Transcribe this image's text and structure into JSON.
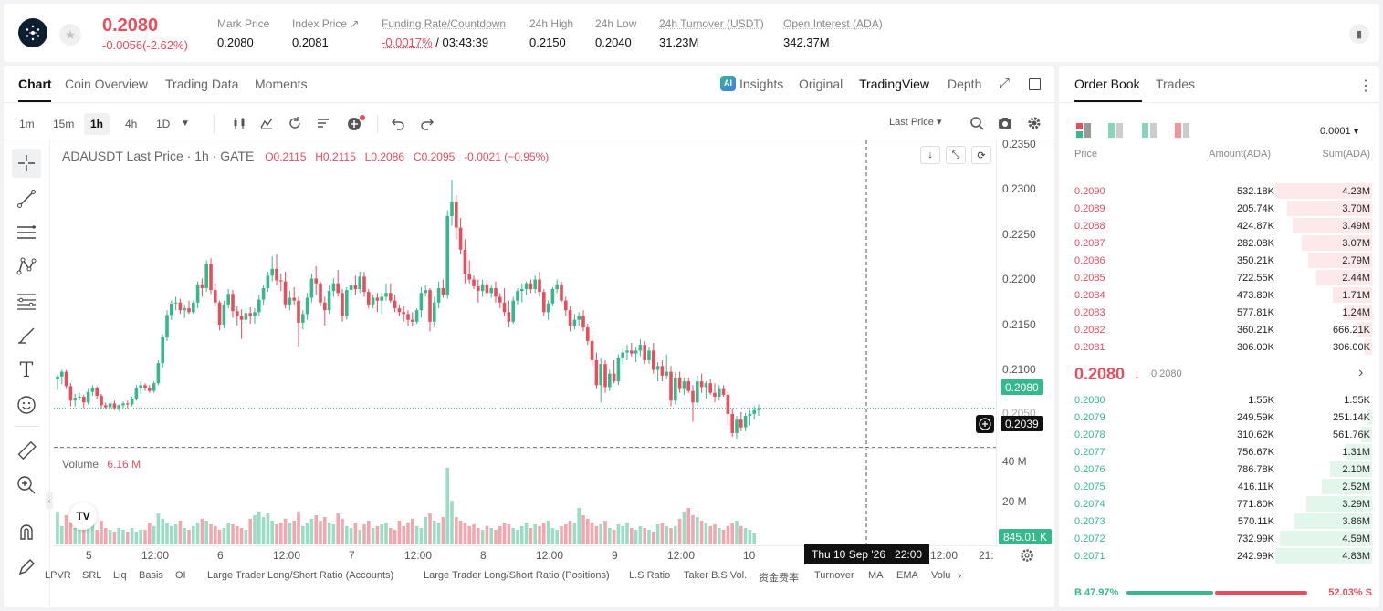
{
  "header": {
    "price": "0.2080",
    "change": "-0.0056(-2.62%)",
    "stats": [
      {
        "label": "Mark Price",
        "value": "0.2080"
      },
      {
        "label": "Index Price ↗",
        "value": "0.2081"
      },
      {
        "label": "Funding Rate/Countdown",
        "value_red": "-0.0017%",
        "value": " / 03:43:39"
      },
      {
        "label": "24h High",
        "value": "0.2150"
      },
      {
        "label": "24h Low",
        "value": "0.2040"
      },
      {
        "label": "24h Turnover (USDT)",
        "value": "31.23M"
      },
      {
        "label": "Open Interest (ADA)",
        "value": "342.37M"
      }
    ]
  },
  "chart_tabs": [
    "Chart",
    "Coin Overview",
    "Trading Data",
    "Moments"
  ],
  "view_tabs": {
    "insights": "Insights",
    "original": "Original",
    "tradingview": "TradingView",
    "depth": "Depth"
  },
  "timeframes": [
    "1m",
    "15m",
    "1h",
    "4h",
    "1D"
  ],
  "price_type": "Last Price ▾",
  "legend": {
    "symbol": "ADAUSDT Last Price · 1h · GATE",
    "o": "O0.2115",
    "h": "H0.2115",
    "l": "L0.2086",
    "c": "C0.2095",
    "chg": "-0.0021 (−0.95%)"
  },
  "volume": {
    "label": "Volume",
    "value": "6.16 M"
  },
  "chart_data": {
    "type": "candlestick",
    "symbol": "ADAUSDT",
    "interval": "1h",
    "y_ticks": [
      "0.2350",
      "0.2300",
      "0.2250",
      "0.2200",
      "0.2150",
      "0.2100",
      "0.2050"
    ],
    "volume_ticks": [
      "40 M",
      "20 M"
    ],
    "x_ticks": [
      "5",
      "12:00",
      "6",
      "12:00",
      "7",
      "12:00",
      "8",
      "12:00",
      "9",
      "12:00",
      "10",
      "12:00",
      "21:"
    ],
    "ylim": [
      0.2035,
      0.2355
    ],
    "last_price": "0.2080",
    "crosshair_price": "0.2039",
    "crosshair_time": "Thu 10 Sep '26",
    "crosshair_hour": "22:00",
    "volume_tag": "845.01 K",
    "candles": [
      [
        0.211,
        0.2115,
        0.2099,
        0.2113
      ],
      [
        0.2113,
        0.212,
        0.2105,
        0.2118
      ],
      [
        0.2118,
        0.212,
        0.21,
        0.2103
      ],
      [
        0.2103,
        0.2106,
        0.2082,
        0.2088
      ],
      [
        0.2088,
        0.2095,
        0.2082,
        0.2091
      ],
      [
        0.2091,
        0.2096,
        0.2088,
        0.2092
      ],
      [
        0.2092,
        0.2094,
        0.208,
        0.2086
      ],
      [
        0.2086,
        0.21,
        0.2084,
        0.2097
      ],
      [
        0.2097,
        0.2104,
        0.2093,
        0.2101
      ],
      [
        0.2101,
        0.2103,
        0.209,
        0.2093
      ],
      [
        0.2093,
        0.2095,
        0.2079,
        0.2083
      ],
      [
        0.2083,
        0.2086,
        0.2079,
        0.2081
      ],
      [
        0.2081,
        0.2087,
        0.2079,
        0.2085
      ],
      [
        0.2085,
        0.2088,
        0.2078,
        0.208
      ],
      [
        0.208,
        0.2084,
        0.2077,
        0.2083
      ],
      [
        0.2083,
        0.2087,
        0.208,
        0.2085
      ],
      [
        0.2085,
        0.2088,
        0.208,
        0.2084
      ],
      [
        0.2084,
        0.2092,
        0.2082,
        0.209
      ],
      [
        0.209,
        0.2104,
        0.2088,
        0.2101
      ],
      [
        0.2101,
        0.2108,
        0.2095,
        0.2104
      ],
      [
        0.2104,
        0.2106,
        0.2098,
        0.2101
      ],
      [
        0.2101,
        0.2104,
        0.2096,
        0.2098
      ],
      [
        0.2098,
        0.2108,
        0.2096,
        0.2106
      ],
      [
        0.2106,
        0.213,
        0.2104,
        0.2127
      ],
      [
        0.2127,
        0.2157,
        0.2122,
        0.2154
      ],
      [
        0.2154,
        0.2182,
        0.215,
        0.2177
      ],
      [
        0.2177,
        0.2192,
        0.2172,
        0.2189
      ],
      [
        0.2189,
        0.2196,
        0.2182,
        0.219
      ],
      [
        0.219,
        0.2194,
        0.2178,
        0.2182
      ],
      [
        0.2182,
        0.2188,
        0.2174,
        0.2184
      ],
      [
        0.2184,
        0.2192,
        0.2178,
        0.218
      ],
      [
        0.218,
        0.2192,
        0.2178,
        0.219
      ],
      [
        0.219,
        0.2212,
        0.2184,
        0.2209
      ],
      [
        0.2209,
        0.2215,
        0.2196,
        0.2205
      ],
      [
        0.2205,
        0.2234,
        0.2201,
        0.223
      ],
      [
        0.223,
        0.2236,
        0.2199,
        0.2203
      ],
      [
        0.2203,
        0.221,
        0.2186,
        0.219
      ],
      [
        0.219,
        0.2192,
        0.2161,
        0.2167
      ],
      [
        0.2167,
        0.2192,
        0.2163,
        0.2188
      ],
      [
        0.2188,
        0.2204,
        0.2184,
        0.2199
      ],
      [
        0.2199,
        0.2203,
        0.2174,
        0.2181
      ],
      [
        0.2181,
        0.2186,
        0.2166,
        0.2176
      ],
      [
        0.2176,
        0.2183,
        0.2152,
        0.2172
      ],
      [
        0.2172,
        0.2184,
        0.2168,
        0.2179
      ],
      [
        0.2179,
        0.2185,
        0.2168,
        0.2176
      ],
      [
        0.2176,
        0.2184,
        0.2168,
        0.218
      ],
      [
        0.218,
        0.2198,
        0.2176,
        0.2193
      ],
      [
        0.2193,
        0.2208,
        0.2188,
        0.2205
      ],
      [
        0.2205,
        0.2222,
        0.2201,
        0.2218
      ],
      [
        0.2218,
        0.2238,
        0.2212,
        0.2225
      ],
      [
        0.2225,
        0.224,
        0.2208,
        0.2213
      ],
      [
        0.2213,
        0.222,
        0.2202,
        0.2212
      ],
      [
        0.2212,
        0.2222,
        0.2184,
        0.2188
      ],
      [
        0.2188,
        0.2202,
        0.2182,
        0.2195
      ],
      [
        0.2195,
        0.2206,
        0.2188,
        0.2192
      ],
      [
        0.2192,
        0.2196,
        0.2144,
        0.2169
      ],
      [
        0.2169,
        0.2182,
        0.2162,
        0.2178
      ],
      [
        0.2178,
        0.22,
        0.2172,
        0.2195
      ],
      [
        0.2195,
        0.222,
        0.219,
        0.2215
      ],
      [
        0.2215,
        0.2228,
        0.2198,
        0.221
      ],
      [
        0.221,
        0.2212,
        0.2186,
        0.219
      ],
      [
        0.219,
        0.2196,
        0.2166,
        0.2182
      ],
      [
        0.2182,
        0.2208,
        0.2178,
        0.2202
      ],
      [
        0.2202,
        0.2215,
        0.2196,
        0.221
      ],
      [
        0.221,
        0.2224,
        0.2196,
        0.22
      ],
      [
        0.22,
        0.2204,
        0.217,
        0.2176
      ],
      [
        0.2176,
        0.2206,
        0.2172,
        0.2203
      ],
      [
        0.2203,
        0.2212,
        0.2194,
        0.2208
      ],
      [
        0.2208,
        0.2218,
        0.2198,
        0.2204
      ],
      [
        0.2204,
        0.2222,
        0.22,
        0.2217
      ],
      [
        0.2217,
        0.2222,
        0.2196,
        0.2201
      ],
      [
        0.2201,
        0.2204,
        0.2184,
        0.2188
      ],
      [
        0.2188,
        0.2198,
        0.2184,
        0.2195
      ],
      [
        0.2195,
        0.22,
        0.218,
        0.2192
      ],
      [
        0.2192,
        0.22,
        0.2178,
        0.2196
      ],
      [
        0.2196,
        0.221,
        0.2192,
        0.22
      ],
      [
        0.22,
        0.221,
        0.219,
        0.2192
      ],
      [
        0.2192,
        0.2198,
        0.218,
        0.2184
      ],
      [
        0.2184,
        0.2188,
        0.2176,
        0.218
      ],
      [
        0.218,
        0.2186,
        0.217,
        0.2178
      ],
      [
        0.2178,
        0.2182,
        0.2166,
        0.2172
      ],
      [
        0.2172,
        0.218,
        0.2165,
        0.217
      ],
      [
        0.217,
        0.2184,
        0.2168,
        0.2182
      ],
      [
        0.2182,
        0.2206,
        0.2174,
        0.22
      ],
      [
        0.22,
        0.2208,
        0.2196,
        0.2203
      ],
      [
        0.2203,
        0.2205,
        0.216,
        0.217
      ],
      [
        0.217,
        0.2196,
        0.2164,
        0.219
      ],
      [
        0.219,
        0.2212,
        0.2184,
        0.2205
      ],
      [
        0.2205,
        0.2214,
        0.2195,
        0.2198
      ],
      [
        0.2198,
        0.2286,
        0.2194,
        0.228
      ],
      [
        0.228,
        0.2318,
        0.227,
        0.2295
      ],
      [
        0.2295,
        0.2302,
        0.2256,
        0.2268
      ],
      [
        0.2268,
        0.2278,
        0.224,
        0.2245
      ],
      [
        0.2245,
        0.2256,
        0.221,
        0.222
      ],
      [
        0.222,
        0.2234,
        0.221,
        0.2214
      ],
      [
        0.2214,
        0.2218,
        0.2204,
        0.2207
      ],
      [
        0.2207,
        0.2214,
        0.219,
        0.2202
      ],
      [
        0.2202,
        0.2214,
        0.2196,
        0.2209
      ],
      [
        0.2209,
        0.2214,
        0.2196,
        0.22
      ],
      [
        0.22,
        0.2208,
        0.2195,
        0.2205
      ],
      [
        0.2205,
        0.2212,
        0.219,
        0.2196
      ],
      [
        0.2196,
        0.22,
        0.2184,
        0.219
      ],
      [
        0.219,
        0.2205,
        0.2176,
        0.218
      ],
      [
        0.218,
        0.2192,
        0.2164,
        0.217
      ],
      [
        0.217,
        0.2196,
        0.2168,
        0.2192
      ],
      [
        0.2192,
        0.2205,
        0.2188,
        0.2202
      ],
      [
        0.2202,
        0.221,
        0.219,
        0.2204
      ],
      [
        0.2204,
        0.2212,
        0.2198,
        0.221
      ],
      [
        0.221,
        0.2214,
        0.22,
        0.2204
      ],
      [
        0.2204,
        0.2218,
        0.22,
        0.2214
      ],
      [
        0.2214,
        0.2222,
        0.2196,
        0.2201
      ],
      [
        0.2201,
        0.2204,
        0.2176,
        0.218
      ],
      [
        0.218,
        0.2192,
        0.2172,
        0.2189
      ],
      [
        0.2189,
        0.2206,
        0.2186,
        0.2204
      ],
      [
        0.2204,
        0.2214,
        0.22,
        0.2209
      ],
      [
        0.2209,
        0.2212,
        0.219,
        0.2192
      ],
      [
        0.2192,
        0.2196,
        0.2176,
        0.2182
      ],
      [
        0.2182,
        0.2186,
        0.216,
        0.2166
      ],
      [
        0.2166,
        0.2178,
        0.2162,
        0.2172
      ],
      [
        0.2172,
        0.218,
        0.2166,
        0.2176
      ],
      [
        0.2176,
        0.2182,
        0.216,
        0.2164
      ],
      [
        0.2164,
        0.2168,
        0.2146,
        0.215
      ],
      [
        0.215,
        0.2156,
        0.2124,
        0.213
      ],
      [
        0.213,
        0.2138,
        0.21,
        0.2104
      ],
      [
        0.2104,
        0.2132,
        0.2086,
        0.2126
      ],
      [
        0.2126,
        0.213,
        0.2096,
        0.2102
      ],
      [
        0.2102,
        0.212,
        0.2098,
        0.2116
      ],
      [
        0.2116,
        0.213,
        0.2106,
        0.2108
      ],
      [
        0.2108,
        0.2136,
        0.2104,
        0.2132
      ],
      [
        0.2132,
        0.2142,
        0.2126,
        0.2138
      ],
      [
        0.2138,
        0.2146,
        0.213,
        0.214
      ],
      [
        0.214,
        0.2148,
        0.2134,
        0.2137
      ],
      [
        0.2137,
        0.2144,
        0.2128,
        0.214
      ],
      [
        0.214,
        0.2152,
        0.2134,
        0.2146
      ],
      [
        0.2146,
        0.215,
        0.2126,
        0.213
      ],
      [
        0.213,
        0.2144,
        0.2126,
        0.214
      ],
      [
        0.214,
        0.2148,
        0.2116,
        0.212
      ],
      [
        0.212,
        0.2128,
        0.2108,
        0.2124
      ],
      [
        0.2124,
        0.213,
        0.2108,
        0.2114
      ],
      [
        0.2114,
        0.2136,
        0.211,
        0.2118
      ],
      [
        0.2118,
        0.2124,
        0.2082,
        0.2088
      ],
      [
        0.2088,
        0.2118,
        0.2084,
        0.2112
      ],
      [
        0.2112,
        0.2118,
        0.2096,
        0.21
      ],
      [
        0.21,
        0.2112,
        0.2094,
        0.2108
      ],
      [
        0.2108,
        0.2112,
        0.2096,
        0.2098
      ],
      [
        0.2098,
        0.2104,
        0.2066,
        0.2086
      ],
      [
        0.2086,
        0.2114,
        0.2082,
        0.2108
      ],
      [
        0.2108,
        0.2116,
        0.2096,
        0.2102
      ],
      [
        0.2102,
        0.2108,
        0.209,
        0.2106
      ],
      [
        0.2106,
        0.211,
        0.2094,
        0.2096
      ],
      [
        0.2096,
        0.2106,
        0.2086,
        0.2092
      ],
      [
        0.2092,
        0.2104,
        0.2088,
        0.21
      ],
      [
        0.21,
        0.2104,
        0.2092,
        0.2094
      ],
      [
        0.2094,
        0.2098,
        0.2062,
        0.2074
      ],
      [
        0.2074,
        0.208,
        0.205,
        0.2054
      ],
      [
        0.2054,
        0.2072,
        0.2048,
        0.2068
      ],
      [
        0.2068,
        0.2076,
        0.2056,
        0.206
      ],
      [
        0.206,
        0.2075,
        0.2056,
        0.2072
      ],
      [
        0.2072,
        0.2078,
        0.2062,
        0.2074
      ],
      [
        0.2074,
        0.2082,
        0.2068,
        0.2078
      ],
      [
        0.2078,
        0.2084,
        0.2072,
        0.208
      ]
    ],
    "volumes": [
      18,
      10,
      16,
      12,
      9,
      8,
      10,
      9,
      11,
      8,
      13,
      9,
      8,
      7,
      9,
      8,
      7,
      9,
      7,
      8,
      8,
      12,
      10,
      17,
      14,
      12,
      10,
      11,
      13,
      9,
      8,
      10,
      12,
      14,
      13,
      11,
      10,
      8,
      9,
      12,
      11,
      10,
      9,
      8,
      14,
      16,
      18,
      15,
      17,
      13,
      11,
      12,
      14,
      12,
      13,
      18,
      10,
      12,
      14,
      16,
      13,
      15,
      12,
      11,
      17,
      14,
      10,
      9,
      12,
      8,
      11,
      13,
      9,
      10,
      11,
      12,
      9,
      8,
      13,
      10,
      12,
      14,
      10,
      9,
      15,
      17,
      13,
      12,
      15,
      42,
      24,
      15,
      13,
      12,
      10,
      11,
      9,
      8,
      10,
      9,
      8,
      10,
      12,
      11,
      9,
      8,
      10,
      12,
      9,
      11,
      10,
      12,
      13,
      9,
      8,
      10,
      11,
      13,
      12,
      20,
      16,
      14,
      12,
      10,
      11,
      13,
      9,
      8,
      11,
      10,
      12,
      9,
      8,
      10,
      9,
      8,
      7,
      11,
      12,
      10,
      9,
      10,
      14,
      18,
      20,
      16,
      15,
      13,
      12,
      10,
      11,
      9,
      8,
      10,
      12,
      13,
      10,
      9,
      8,
      6
    ]
  },
  "indicators": [
    "LPVR",
    "SRL",
    "Liq",
    "Basis",
    "OI",
    "Large Trader Long/Short Ratio (Accounts)",
    "Large Trader Long/Short Ratio (Positions)",
    "L.S Ratio",
    "Taker B.S Vol.",
    "资金费率",
    "Turnover",
    "MA",
    "EMA",
    "Volu"
  ],
  "orderbook": {
    "tabs": [
      "Order Book",
      "Trades"
    ],
    "precision": "0.0001 ▾",
    "columns": [
      "Price",
      "Amount(ADA)",
      "Sum(ADA)"
    ],
    "asks": [
      {
        "p": "0.2090",
        "a": "532.18K",
        "s": "4.23M",
        "f": 1.0
      },
      {
        "p": "0.2089",
        "a": "205.74K",
        "s": "3.70M",
        "f": 0.875
      },
      {
        "p": "0.2088",
        "a": "424.87K",
        "s": "3.49M",
        "f": 0.825
      },
      {
        "p": "0.2087",
        "a": "282.08K",
        "s": "3.07M",
        "f": 0.726
      },
      {
        "p": "0.2086",
        "a": "350.21K",
        "s": "2.79M",
        "f": 0.66
      },
      {
        "p": "0.2085",
        "a": "722.55K",
        "s": "2.44M",
        "f": 0.577
      },
      {
        "p": "0.2084",
        "a": "473.89K",
        "s": "1.71M",
        "f": 0.404
      },
      {
        "p": "0.2083",
        "a": "577.81K",
        "s": "1.24M",
        "f": 0.293
      },
      {
        "p": "0.2082",
        "a": "360.21K",
        "s": "666.21K",
        "f": 0.157
      },
      {
        "p": "0.2081",
        "a": "306.00K",
        "s": "306.00K",
        "f": 0.072
      }
    ],
    "mid_price": "0.2080",
    "mid_arrow": "↓",
    "mark": "0.2080",
    "bids": [
      {
        "p": "0.2080",
        "a": "1.55K",
        "s": "1.55K",
        "f": 0.0
      },
      {
        "p": "0.2079",
        "a": "249.59K",
        "s": "251.14K",
        "f": 0.052
      },
      {
        "p": "0.2078",
        "a": "310.62K",
        "s": "561.76K",
        "f": 0.116
      },
      {
        "p": "0.2077",
        "a": "756.67K",
        "s": "1.31M",
        "f": 0.271
      },
      {
        "p": "0.2076",
        "a": "786.78K",
        "s": "2.10M",
        "f": 0.435
      },
      {
        "p": "0.2075",
        "a": "416.11K",
        "s": "2.52M",
        "f": 0.522
      },
      {
        "p": "0.2074",
        "a": "771.80K",
        "s": "3.29M",
        "f": 0.681
      },
      {
        "p": "0.2073",
        "a": "570.11K",
        "s": "3.86M",
        "f": 0.799
      },
      {
        "p": "0.2072",
        "a": "732.99K",
        "s": "4.59M",
        "f": 0.95
      },
      {
        "p": "0.2071",
        "a": "242.99K",
        "s": "4.83M",
        "f": 1.0
      }
    ],
    "buy_label": "B 47.97%",
    "sell_label": "52.03% S",
    "buy_pct": 47.97
  },
  "colors": {
    "up": "#35b98a",
    "down": "#e84d5e"
  }
}
